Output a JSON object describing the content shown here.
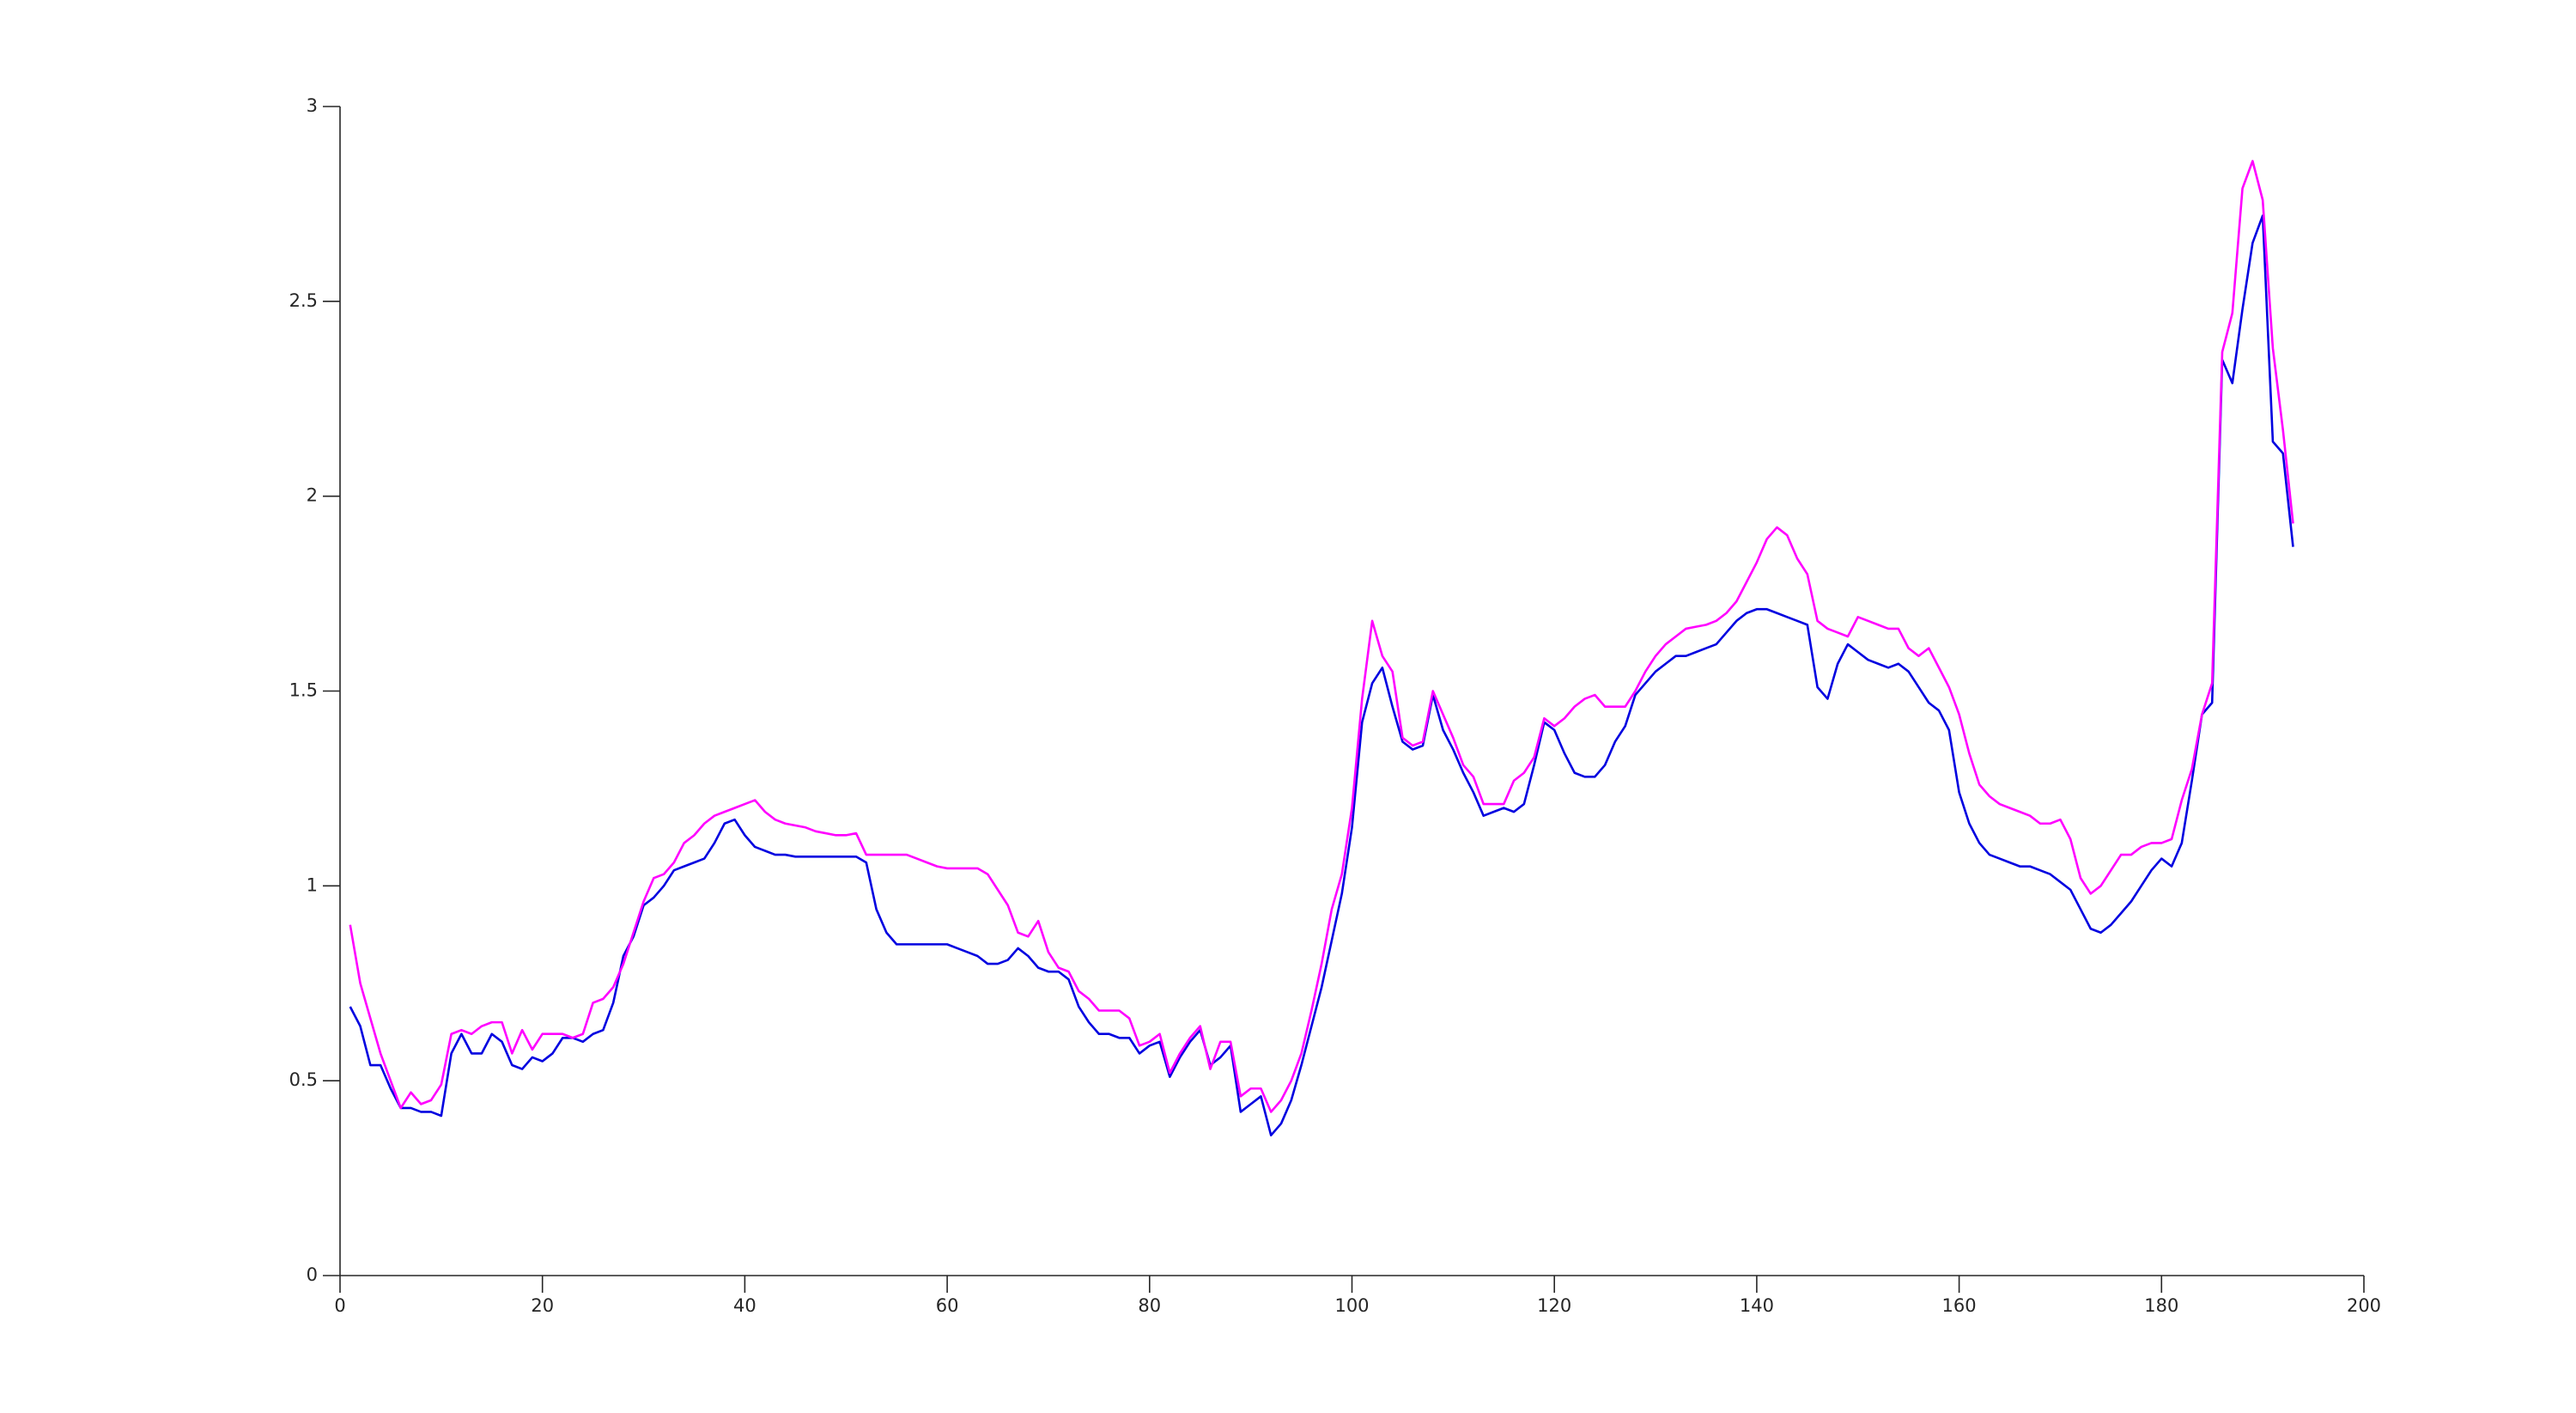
{
  "chart_data": {
    "type": "line",
    "x": [
      1,
      2,
      3,
      4,
      5,
      6,
      7,
      8,
      9,
      10,
      11,
      12,
      13,
      14,
      15,
      16,
      17,
      18,
      19,
      20,
      21,
      22,
      23,
      24,
      25,
      26,
      27,
      28,
      29,
      30,
      31,
      32,
      33,
      34,
      35,
      36,
      37,
      38,
      39,
      40,
      41,
      42,
      43,
      44,
      45,
      46,
      47,
      48,
      49,
      50,
      51,
      52,
      53,
      54,
      55,
      56,
      57,
      58,
      59,
      60,
      61,
      62,
      63,
      64,
      65,
      66,
      67,
      68,
      69,
      70,
      71,
      72,
      73,
      74,
      75,
      76,
      77,
      78,
      79,
      80,
      81,
      82,
      83,
      84,
      85,
      86,
      87,
      88,
      89,
      90,
      91,
      92,
      93,
      94,
      95,
      96,
      97,
      98,
      99,
      100,
      101,
      102,
      103,
      104,
      105,
      106,
      107,
      108,
      109,
      110,
      111,
      112,
      113,
      114,
      115,
      116,
      117,
      118,
      119,
      120,
      121,
      122,
      123,
      124,
      125,
      126,
      127,
      128,
      129,
      130,
      131,
      132,
      133,
      134,
      135,
      136,
      137,
      138,
      139,
      140,
      141,
      142,
      143,
      144,
      145,
      146,
      147,
      148,
      149,
      150,
      151,
      152,
      153,
      154,
      155,
      156,
      157,
      158,
      159,
      160,
      161,
      162,
      163,
      164,
      165,
      166,
      167,
      168,
      169,
      170,
      171,
      172,
      173,
      174,
      175,
      176,
      177,
      178,
      179,
      180,
      181,
      182,
      183,
      184,
      185,
      186,
      187,
      188,
      189,
      190,
      191,
      192,
      193
    ],
    "series": [
      {
        "color": "#0000e0",
        "values": [
          0.69,
          0.64,
          0.54,
          0.54,
          0.48,
          0.43,
          0.43,
          0.42,
          0.42,
          0.41,
          0.57,
          0.62,
          0.57,
          0.57,
          0.62,
          0.6,
          0.54,
          0.53,
          0.56,
          0.55,
          0.57,
          0.61,
          0.61,
          0.6,
          0.62,
          0.63,
          0.7,
          0.82,
          0.87,
          0.95,
          0.97,
          1.0,
          1.04,
          1.05,
          1.06,
          1.07,
          1.11,
          1.16,
          1.17,
          1.13,
          1.1,
          1.09,
          1.08,
          1.08,
          1.075,
          1.075,
          1.075,
          1.075,
          1.075,
          1.075,
          1.075,
          1.06,
          0.94,
          0.88,
          0.85,
          0.85,
          0.85,
          0.85,
          0.85,
          0.85,
          0.84,
          0.83,
          0.82,
          0.8,
          0.8,
          0.81,
          0.84,
          0.82,
          0.79,
          0.78,
          0.78,
          0.76,
          0.69,
          0.65,
          0.62,
          0.62,
          0.61,
          0.61,
          0.57,
          0.59,
          0.6,
          0.51,
          0.56,
          0.6,
          0.63,
          0.54,
          0.56,
          0.59,
          0.42,
          0.44,
          0.46,
          0.36,
          0.39,
          0.45,
          0.54,
          0.64,
          0.74,
          0.86,
          0.98,
          1.15,
          1.42,
          1.52,
          1.56,
          1.46,
          1.37,
          1.35,
          1.36,
          1.49,
          1.4,
          1.35,
          1.29,
          1.24,
          1.18,
          1.19,
          1.2,
          1.19,
          1.21,
          1.31,
          1.42,
          1.4,
          1.34,
          1.29,
          1.28,
          1.28,
          1.31,
          1.37,
          1.41,
          1.49,
          1.52,
          1.55,
          1.57,
          1.59,
          1.59,
          1.6,
          1.61,
          1.62,
          1.65,
          1.68,
          1.7,
          1.71,
          1.71,
          1.7,
          1.69,
          1.68,
          1.67,
          1.51,
          1.48,
          1.57,
          1.62,
          1.6,
          1.58,
          1.57,
          1.56,
          1.57,
          1.55,
          1.51,
          1.47,
          1.45,
          1.4,
          1.24,
          1.16,
          1.11,
          1.08,
          1.07,
          1.06,
          1.05,
          1.05,
          1.04,
          1.03,
          1.01,
          0.99,
          0.94,
          0.89,
          0.88,
          0.9,
          0.93,
          0.96,
          1.0,
          1.04,
          1.07,
          1.05,
          1.11,
          1.27,
          1.44,
          1.47,
          2.35,
          2.29,
          2.48,
          2.65,
          2.72,
          2.14,
          2.11,
          1.87
        ]
      },
      {
        "color": "#ff00ff",
        "values": [
          0.9,
          0.75,
          0.66,
          0.57,
          0.5,
          0.43,
          0.47,
          0.44,
          0.45,
          0.49,
          0.62,
          0.63,
          0.62,
          0.64,
          0.65,
          0.65,
          0.57,
          0.63,
          0.58,
          0.62,
          0.62,
          0.62,
          0.61,
          0.62,
          0.7,
          0.71,
          0.74,
          0.8,
          0.88,
          0.96,
          1.02,
          1.03,
          1.06,
          1.11,
          1.13,
          1.16,
          1.18,
          1.19,
          1.2,
          1.21,
          1.22,
          1.19,
          1.17,
          1.16,
          1.155,
          1.15,
          1.14,
          1.135,
          1.13,
          1.13,
          1.135,
          1.08,
          1.08,
          1.08,
          1.08,
          1.08,
          1.07,
          1.06,
          1.05,
          1.045,
          1.045,
          1.045,
          1.045,
          1.03,
          0.99,
          0.95,
          0.88,
          0.87,
          0.91,
          0.83,
          0.79,
          0.78,
          0.73,
          0.71,
          0.68,
          0.68,
          0.68,
          0.66,
          0.59,
          0.6,
          0.62,
          0.52,
          0.57,
          0.61,
          0.64,
          0.53,
          0.6,
          0.6,
          0.46,
          0.48,
          0.48,
          0.42,
          0.45,
          0.5,
          0.57,
          0.68,
          0.8,
          0.94,
          1.03,
          1.2,
          1.48,
          1.68,
          1.59,
          1.55,
          1.38,
          1.36,
          1.37,
          1.5,
          1.44,
          1.38,
          1.31,
          1.28,
          1.21,
          1.21,
          1.21,
          1.27,
          1.29,
          1.33,
          1.43,
          1.41,
          1.43,
          1.46,
          1.48,
          1.49,
          1.46,
          1.46,
          1.46,
          1.5,
          1.55,
          1.59,
          1.62,
          1.64,
          1.66,
          1.665,
          1.67,
          1.68,
          1.7,
          1.73,
          1.78,
          1.83,
          1.89,
          1.92,
          1.9,
          1.84,
          1.8,
          1.68,
          1.66,
          1.65,
          1.64,
          1.69,
          1.68,
          1.67,
          1.66,
          1.66,
          1.61,
          1.59,
          1.61,
          1.56,
          1.51,
          1.44,
          1.34,
          1.26,
          1.23,
          1.21,
          1.2,
          1.19,
          1.18,
          1.16,
          1.16,
          1.17,
          1.12,
          1.02,
          0.98,
          1.0,
          1.04,
          1.08,
          1.08,
          1.1,
          1.11,
          1.11,
          1.12,
          1.22,
          1.3,
          1.44,
          1.52,
          2.37,
          2.47,
          2.79,
          2.86,
          2.76,
          2.38,
          2.17,
          1.93
        ]
      }
    ],
    "xlim": [
      0,
      200
    ],
    "xticks": [
      0,
      20,
      40,
      60,
      80,
      100,
      120,
      140,
      160,
      180,
      200
    ],
    "ylim": [
      0,
      3
    ],
    "yticks": [
      0,
      0.5,
      1,
      1.5,
      2,
      2.5,
      3
    ]
  }
}
